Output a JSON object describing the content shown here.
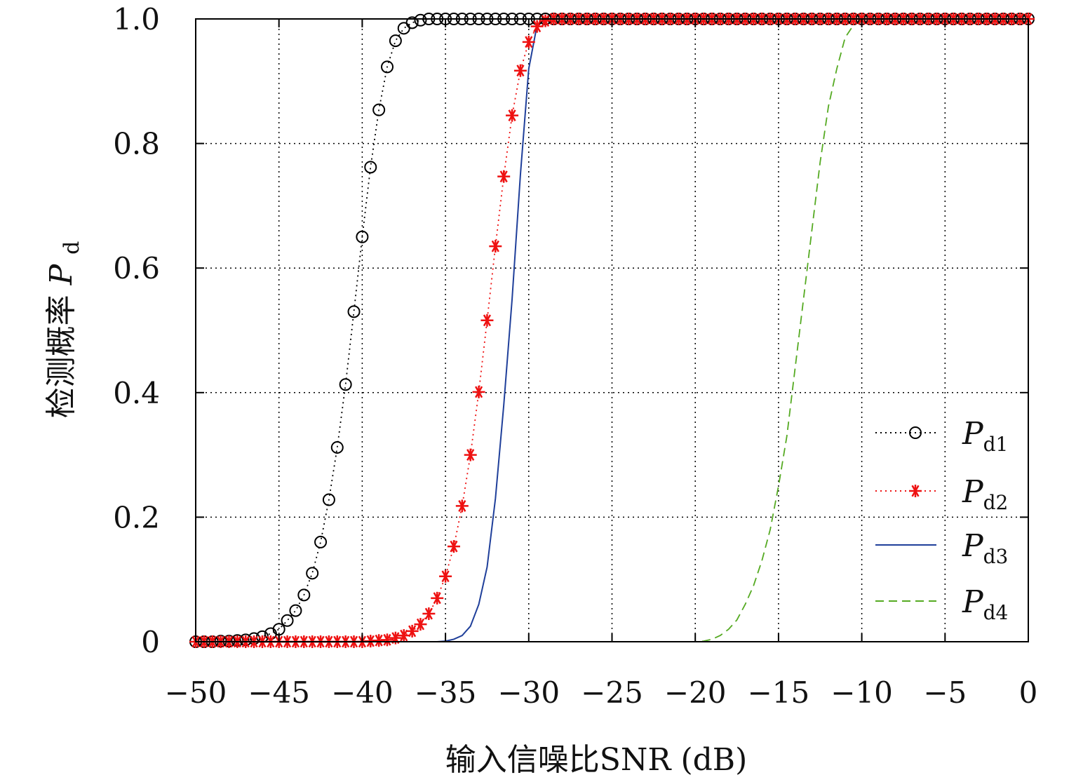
{
  "chart_data": {
    "type": "line",
    "title": "",
    "xlabel": "输入信噪比SNR (dB)",
    "ylabel_main": "检测概率",
    "ylabel_var": "P",
    "ylabel_sub": "d",
    "xlim": [
      -50,
      0
    ],
    "ylim": [
      0,
      1
    ],
    "grid": true,
    "legend_placement": "right, lower-middle",
    "xticks": [
      -50,
      -45,
      -40,
      -35,
      -30,
      -25,
      -20,
      -15,
      -10,
      -5,
      0
    ],
    "xtick_labels": [
      "−50",
      "−45",
      "−40",
      "−35",
      "−30",
      "−25",
      "−20",
      "−15",
      "−10",
      "−5",
      "0"
    ],
    "yticks": [
      0,
      0.2,
      0.4,
      0.6,
      0.8,
      1.0
    ],
    "ytick_labels": [
      "0",
      "0.2",
      "0.4",
      "0.6",
      "0.8",
      "1.0"
    ],
    "x": [
      -50,
      -49.5,
      -49,
      -48.5,
      -48,
      -47.5,
      -47,
      -46.5,
      -46,
      -45.5,
      -45,
      -44.5,
      -44,
      -43.5,
      -43,
      -42.5,
      -42,
      -41.5,
      -41,
      -40.5,
      -40,
      -39.5,
      -39,
      -38.5,
      -38,
      -37.5,
      -37,
      -36.5,
      -36,
      -35.5,
      -35,
      -34.5,
      -34,
      -33.5,
      -33,
      -32.5,
      -32,
      -31.5,
      -31,
      -30.5,
      -30,
      -29.5,
      -29,
      -28.5,
      -28,
      -27.5,
      -27,
      -26.5,
      -26,
      -25.5,
      -25,
      -24.5,
      -24,
      -23.5,
      -23,
      -22.5,
      -22,
      -21.5,
      -21,
      -20.5,
      -20,
      -19.5,
      -19,
      -18.5,
      -18,
      -17.5,
      -17,
      -16.5,
      -16,
      -15.5,
      -15,
      -14.5,
      -14,
      -13.5,
      -13,
      -12.5,
      -12,
      -11.5,
      -11,
      -10.5,
      -10,
      -9.5,
      -9,
      -8.5,
      -8,
      -7.5,
      -7,
      -6.5,
      -6,
      -5.5,
      -5,
      -4.5,
      -4,
      -3.5,
      -3,
      -2.5,
      -2,
      -1.5,
      -1,
      -0.5,
      0
    ],
    "series": [
      {
        "name": "P",
        "sub": "d1",
        "color": "#000000",
        "style": "dotted",
        "marker": "circle",
        "values": [
          0,
          0,
          0,
          0.001,
          0.001,
          0.002,
          0.003,
          0.005,
          0.008,
          0.013,
          0.02,
          0.034,
          0.05,
          0.075,
          0.11,
          0.16,
          0.228,
          0.312,
          0.413,
          0.53,
          0.65,
          0.762,
          0.854,
          0.923,
          0.965,
          0.985,
          0.994,
          0.998,
          1,
          1,
          1,
          1,
          1,
          1,
          1,
          1,
          1,
          1,
          1,
          1,
          1,
          1,
          1,
          1,
          1,
          1,
          1,
          1,
          1,
          1,
          1,
          1,
          1,
          1,
          1,
          1,
          1,
          1,
          1,
          1,
          1,
          1,
          1,
          1,
          1,
          1,
          1,
          1,
          1,
          1,
          1,
          1,
          1,
          1,
          1,
          1,
          1,
          1,
          1,
          1,
          1,
          1,
          1,
          1,
          1,
          1,
          1,
          1,
          1,
          1,
          1,
          1,
          1,
          1,
          1,
          1,
          1,
          1,
          1,
          1,
          1
        ]
      },
      {
        "name": "P",
        "sub": "d2",
        "color": "#ee1111",
        "style": "dotted",
        "marker": "star",
        "values": [
          0,
          0,
          0,
          0,
          0,
          0,
          0,
          0,
          0,
          0,
          0,
          0,
          0,
          0,
          0,
          0,
          0,
          0,
          0,
          0,
          0,
          0.001,
          0.002,
          0.003,
          0.006,
          0.01,
          0.017,
          0.028,
          0.045,
          0.07,
          0.105,
          0.153,
          0.218,
          0.3,
          0.401,
          0.516,
          0.635,
          0.747,
          0.845,
          0.917,
          0.963,
          0.988,
          0.997,
          1,
          1,
          1,
          1,
          1,
          1,
          1,
          1,
          1,
          1,
          1,
          1,
          1,
          1,
          1,
          1,
          1,
          1,
          1,
          1,
          1,
          1,
          1,
          1,
          1,
          1,
          1,
          1,
          1,
          1,
          1,
          1,
          1,
          1,
          1,
          1,
          1,
          1,
          1,
          1,
          1,
          1,
          1,
          1,
          1,
          1,
          1,
          1,
          1,
          1,
          1,
          1,
          1,
          1,
          1,
          1,
          1,
          1
        ]
      },
      {
        "name": "P",
        "sub": "d3",
        "color": "#1f3f9a",
        "style": "solid",
        "marker": "none",
        "values": [
          0,
          0,
          0,
          0,
          0,
          0,
          0,
          0,
          0,
          0,
          0,
          0,
          0,
          0,
          0,
          0,
          0,
          0,
          0,
          0,
          0,
          0,
          0,
          0,
          0,
          0,
          0,
          0,
          0,
          0,
          0.001,
          0.004,
          0.01,
          0.025,
          0.06,
          0.12,
          0.23,
          0.38,
          0.55,
          0.75,
          0.92,
          0.99,
          1,
          1,
          1,
          1,
          1,
          1,
          1,
          1,
          1,
          1,
          1,
          1,
          1,
          1,
          1,
          1,
          1,
          1,
          1,
          1,
          1,
          1,
          1,
          1,
          1,
          1,
          1,
          1,
          1,
          1,
          1,
          1,
          1,
          1,
          1,
          1,
          1,
          1,
          1,
          1,
          1,
          1,
          1,
          1,
          1,
          1,
          1,
          1,
          1,
          1,
          1,
          1,
          1,
          1,
          1,
          1,
          1,
          1,
          1
        ]
      },
      {
        "name": "P",
        "sub": "d4",
        "color": "#55aa22",
        "style": "dashed",
        "marker": "none",
        "values": [
          0,
          0,
          0,
          0,
          0,
          0,
          0,
          0,
          0,
          0,
          0,
          0,
          0,
          0,
          0,
          0,
          0,
          0,
          0,
          0,
          0,
          0,
          0,
          0,
          0,
          0,
          0,
          0,
          0,
          0,
          0,
          0,
          0,
          0,
          0,
          0,
          0,
          0,
          0,
          0,
          0,
          0,
          0,
          0,
          0,
          0,
          0,
          0,
          0,
          0,
          0,
          0,
          0,
          0,
          0,
          0,
          0,
          0,
          0,
          0,
          0,
          0.001,
          0.004,
          0.01,
          0.02,
          0.035,
          0.06,
          0.09,
          0.13,
          0.18,
          0.25,
          0.33,
          0.44,
          0.55,
          0.66,
          0.77,
          0.86,
          0.92,
          0.97,
          0.99,
          1,
          1,
          1,
          1,
          1,
          1,
          1,
          1,
          1,
          1,
          1,
          1,
          1,
          1,
          1,
          1,
          1,
          1,
          1,
          1,
          1
        ]
      }
    ]
  }
}
